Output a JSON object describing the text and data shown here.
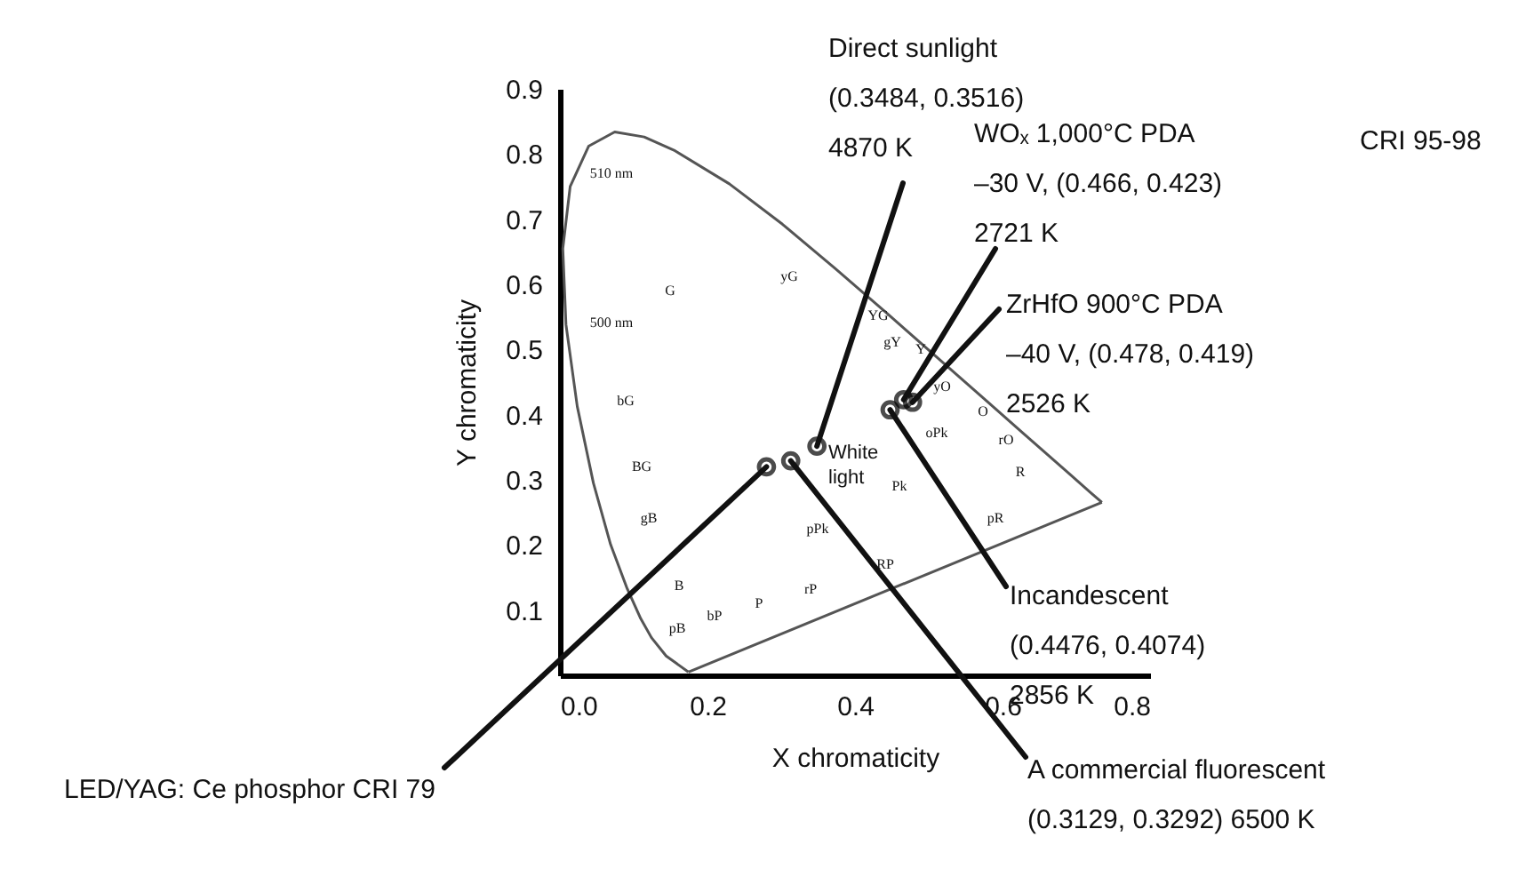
{
  "chart_data": {
    "type": "scatter",
    "xlabel": "X chromaticity",
    "ylabel": "Y chromaticity",
    "xlim": [
      0,
      0.8
    ],
    "ylim": [
      0,
      0.9
    ],
    "xticks": [
      {
        "value": 0,
        "label": "0.0"
      },
      0.2,
      0.4,
      0.6,
      0.8
    ],
    "yticks": [
      0.1,
      0.2,
      0.3,
      0.4,
      0.5,
      0.6,
      0.7,
      0.8,
      0.9
    ],
    "series": [
      {
        "type": "line",
        "color": "#555555",
        "marker": "none",
        "x": [
          0.1741,
          0.144,
          0.1241,
          0.1096,
          0.0913,
          0.0687,
          0.0454,
          0.0235,
          0.0082,
          0.0039,
          0.0139,
          0.0389,
          0.0743,
          0.1142,
          0.1547,
          0.2296,
          0.3016,
          0.3731,
          0.4441,
          0.5125,
          0.5752,
          0.627,
          0.6915,
          0.719,
          0.7347
        ],
        "values": [
          0.005,
          0.0297,
          0.0578,
          0.0868,
          0.1327,
          0.2007,
          0.295,
          0.4127,
          0.5384,
          0.6548,
          0.7502,
          0.812,
          0.8338,
          0.8262,
          0.8059,
          0.7543,
          0.6923,
          0.6245,
          0.5547,
          0.4866,
          0.4242,
          0.3725,
          0.3083,
          0.2809,
          0.2653
        ]
      },
      {
        "type": "line",
        "color": "#555555",
        "marker": "none",
        "x": [
          0.1741,
          0.7347
        ],
        "values": [
          0.005,
          0.2653
        ]
      },
      {
        "color": "#000000",
        "marker": "circle",
        "x": [
          0.3484,
          0.466,
          0.478,
          0.4476,
          0.3129,
          0.28
        ],
        "values": [
          0.3516,
          0.423,
          0.419,
          0.4074,
          0.3292,
          0.32
        ]
      }
    ],
    "annotations": [
      {
        "text": "Direct sunlight\n(0.3484, 0.3516)\n4870 K",
        "x": 0.3484,
        "y": 0.3516
      },
      {
        "text": "WOₓ  1,000°C PDA\n–30 V, (0.466, 0.423)\n2721 K",
        "x": 0.466,
        "y": 0.423
      },
      {
        "text": "ZrHfO  900°C PDA\n–40 V, (0.478, 0.419)\n2526 K",
        "x": 0.478,
        "y": 0.419
      },
      {
        "text": "Incandescent\n(0.4476, 0.4074)\n 2856 K",
        "x": 0.4476,
        "y": 0.4074
      },
      {
        "text": "A commercial fluorescent\n(0.3129, 0.3292) 6500 K",
        "x": 0.3129,
        "y": 0.3292
      },
      {
        "text": "LED/YAG: Ce phosphor CRI 79",
        "x": 0.28,
        "y": 0.32
      },
      "White\nlight",
      "CRI 95-98",
      "510 nm",
      "500 nm",
      "G",
      "yG",
      "YG",
      "gY",
      "Y",
      "yO",
      "O",
      "rO",
      "R",
      "bG",
      "BG",
      "gB",
      "B",
      "pB",
      "bP",
      "P",
      "rP",
      "RP",
      "pR",
      "pPk",
      "Pk",
      "oPk"
    ]
  }
}
